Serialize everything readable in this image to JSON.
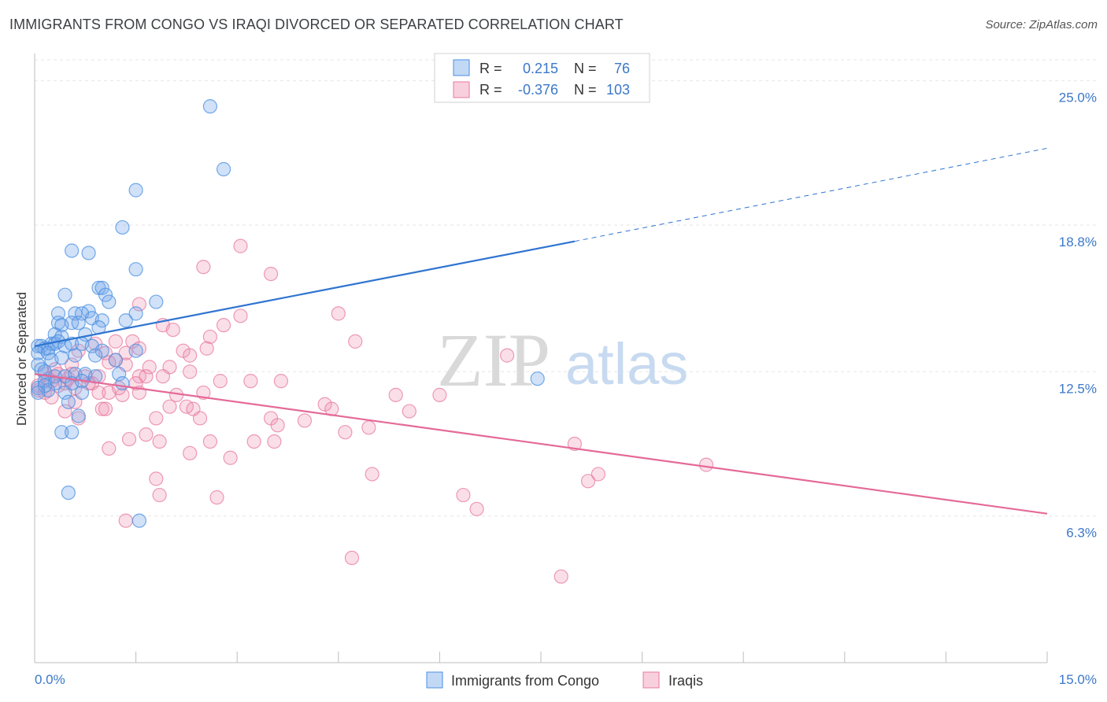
{
  "title": "IMMIGRANTS FROM CONGO VS IRAQI DIVORCED OR SEPARATED CORRELATION CHART",
  "source": "Source: ZipAtlas.com",
  "watermark": {
    "zip": "ZIP",
    "atlas": "atlas"
  },
  "colors": {
    "blue": "#4a8fe0",
    "blue_fill": "rgba(120,170,235,0.35)",
    "blue_line": "#2f74d0",
    "pink": "#e8799f",
    "pink_fill": "rgba(240,150,180,0.30)",
    "pink_line": "#e46a97",
    "grid": "#e6e6e6",
    "tick_text": "#3b78c8"
  },
  "legend_box": {
    "rows": [
      {
        "r_label": "R =",
        "r_value": "0.215",
        "n_label": "N =",
        "n_value": "76"
      },
      {
        "r_label": "R =",
        "r_value": "-0.376",
        "n_label": "N =",
        "n_value": "103"
      }
    ]
  },
  "chart_data": {
    "type": "scatter",
    "xlabel": "",
    "ylabel": "Divorced or Separated",
    "xlim": [
      0,
      15
    ],
    "ylim": [
      0,
      25.9
    ],
    "x_tick_labels": {
      "left": "0.0%",
      "right": "15.0%"
    },
    "y_ticks": [
      {
        "value": 25.0,
        "label": "25.0%"
      },
      {
        "value": 18.8,
        "label": "18.8%"
      },
      {
        "value": 12.5,
        "label": "12.5%"
      },
      {
        "value": 6.3,
        "label": "6.3%"
      }
    ],
    "grid": "horizontal dashed",
    "series": [
      {
        "name": "Immigrants from Congo",
        "color": "blue",
        "trend": {
          "x0": 0.0,
          "y0": 13.6,
          "x1": 8.0,
          "y1": 18.1,
          "dash_to_x": 15.0,
          "dash_to_y": 22.1
        },
        "points": [
          [
            2.6,
            23.9
          ],
          [
            2.8,
            21.2
          ],
          [
            1.5,
            20.3
          ],
          [
            1.3,
            18.7
          ],
          [
            0.55,
            17.7
          ],
          [
            0.8,
            17.6
          ],
          [
            1.5,
            16.9
          ],
          [
            0.95,
            16.1
          ],
          [
            1.0,
            16.1
          ],
          [
            0.45,
            15.8
          ],
          [
            1.05,
            15.8
          ],
          [
            1.1,
            15.5
          ],
          [
            1.8,
            15.5
          ],
          [
            0.35,
            15.0
          ],
          [
            0.6,
            15.0
          ],
          [
            0.8,
            15.1
          ],
          [
            0.7,
            15.0
          ],
          [
            1.5,
            15.0
          ],
          [
            0.35,
            14.6
          ],
          [
            0.55,
            14.6
          ],
          [
            0.65,
            14.6
          ],
          [
            0.4,
            14.5
          ],
          [
            0.85,
            14.8
          ],
          [
            1.0,
            14.7
          ],
          [
            1.35,
            14.7
          ],
          [
            0.3,
            14.1
          ],
          [
            0.75,
            14.1
          ],
          [
            0.4,
            14.0
          ],
          [
            0.95,
            14.4
          ],
          [
            0.05,
            13.6
          ],
          [
            0.1,
            13.6
          ],
          [
            0.15,
            13.5
          ],
          [
            0.2,
            13.5
          ],
          [
            0.25,
            13.7
          ],
          [
            0.3,
            13.7
          ],
          [
            0.35,
            13.8
          ],
          [
            0.45,
            13.6
          ],
          [
            0.55,
            13.7
          ],
          [
            0.7,
            13.7
          ],
          [
            0.85,
            13.6
          ],
          [
            1.0,
            13.4
          ],
          [
            1.5,
            13.4
          ],
          [
            0.05,
            13.3
          ],
          [
            0.2,
            13.3
          ],
          [
            0.25,
            13.0
          ],
          [
            0.4,
            13.1
          ],
          [
            0.6,
            13.2
          ],
          [
            0.9,
            13.2
          ],
          [
            1.2,
            13.0
          ],
          [
            0.05,
            12.8
          ],
          [
            0.1,
            12.6
          ],
          [
            0.15,
            12.5
          ],
          [
            0.3,
            12.3
          ],
          [
            0.45,
            12.3
          ],
          [
            0.6,
            12.4
          ],
          [
            0.75,
            12.4
          ],
          [
            0.9,
            12.3
          ],
          [
            1.25,
            12.4
          ],
          [
            0.15,
            12.1
          ],
          [
            0.3,
            12.0
          ],
          [
            0.55,
            12.0
          ],
          [
            0.7,
            12.1
          ],
          [
            1.3,
            12.0
          ],
          [
            0.05,
            11.8
          ],
          [
            0.2,
            11.7
          ],
          [
            0.45,
            11.6
          ],
          [
            0.7,
            11.6
          ],
          [
            0.5,
            11.2
          ],
          [
            0.65,
            10.6
          ],
          [
            0.4,
            9.9
          ],
          [
            0.55,
            9.9
          ],
          [
            0.5,
            7.3
          ],
          [
            1.55,
            6.1
          ],
          [
            7.45,
            12.2
          ],
          [
            0.15,
            11.9
          ],
          [
            0.05,
            11.6
          ]
        ]
      },
      {
        "name": "Iraqis",
        "color": "pink",
        "trend": {
          "x0": 0.0,
          "y0": 12.4,
          "x1": 15.0,
          "y1": 6.4
        },
        "points": [
          [
            3.05,
            17.9
          ],
          [
            2.5,
            17.0
          ],
          [
            3.5,
            16.7
          ],
          [
            4.5,
            15.0
          ],
          [
            1.55,
            15.4
          ],
          [
            3.05,
            14.9
          ],
          [
            2.8,
            14.5
          ],
          [
            1.9,
            14.5
          ],
          [
            2.05,
            14.3
          ],
          [
            2.6,
            14.0
          ],
          [
            4.75,
            13.8
          ],
          [
            1.2,
            13.8
          ],
          [
            1.45,
            13.8
          ],
          [
            0.9,
            13.7
          ],
          [
            1.55,
            13.5
          ],
          [
            2.2,
            13.4
          ],
          [
            2.55,
            13.5
          ],
          [
            0.65,
            13.4
          ],
          [
            1.35,
            13.3
          ],
          [
            2.3,
            13.2
          ],
          [
            1.05,
            13.3
          ],
          [
            7.0,
            13.2
          ],
          [
            1.2,
            13.0
          ],
          [
            0.55,
            12.8
          ],
          [
            1.1,
            12.9
          ],
          [
            1.35,
            12.8
          ],
          [
            1.7,
            12.7
          ],
          [
            2.0,
            12.7
          ],
          [
            2.3,
            12.5
          ],
          [
            0.15,
            12.4
          ],
          [
            0.35,
            12.4
          ],
          [
            0.55,
            12.4
          ],
          [
            0.75,
            12.3
          ],
          [
            0.95,
            12.3
          ],
          [
            1.55,
            12.3
          ],
          [
            1.65,
            12.3
          ],
          [
            1.9,
            12.3
          ],
          [
            3.2,
            12.1
          ],
          [
            3.65,
            12.1
          ],
          [
            0.25,
            12.1
          ],
          [
            0.45,
            12.0
          ],
          [
            0.85,
            12.0
          ],
          [
            1.5,
            12.0
          ],
          [
            0.05,
            11.9
          ],
          [
            0.35,
            11.9
          ],
          [
            0.6,
            11.8
          ],
          [
            0.15,
            11.6
          ],
          [
            0.95,
            11.6
          ],
          [
            1.1,
            11.6
          ],
          [
            1.55,
            11.6
          ],
          [
            2.1,
            11.5
          ],
          [
            2.5,
            11.6
          ],
          [
            0.25,
            11.4
          ],
          [
            1.3,
            11.5
          ],
          [
            5.35,
            11.5
          ],
          [
            6.0,
            11.5
          ],
          [
            2.0,
            11.0
          ],
          [
            2.25,
            11.0
          ],
          [
            4.3,
            11.1
          ],
          [
            4.4,
            10.9
          ],
          [
            1.0,
            10.9
          ],
          [
            1.05,
            10.9
          ],
          [
            0.45,
            10.8
          ],
          [
            2.35,
            10.9
          ],
          [
            5.55,
            10.8
          ],
          [
            0.65,
            10.5
          ],
          [
            1.8,
            10.5
          ],
          [
            2.45,
            10.5
          ],
          [
            3.5,
            10.5
          ],
          [
            4.0,
            10.4
          ],
          [
            3.6,
            10.2
          ],
          [
            4.95,
            10.1
          ],
          [
            1.65,
            9.8
          ],
          [
            4.6,
            9.9
          ],
          [
            1.4,
            9.6
          ],
          [
            2.6,
            9.5
          ],
          [
            3.25,
            9.5
          ],
          [
            1.85,
            9.5
          ],
          [
            3.55,
            9.5
          ],
          [
            8.0,
            9.4
          ],
          [
            1.1,
            9.2
          ],
          [
            2.3,
            9.0
          ],
          [
            2.9,
            8.8
          ],
          [
            9.95,
            8.5
          ],
          [
            5.0,
            8.1
          ],
          [
            8.35,
            8.1
          ],
          [
            8.2,
            7.8
          ],
          [
            1.8,
            7.9
          ],
          [
            1.85,
            7.2
          ],
          [
            2.7,
            7.1
          ],
          [
            6.35,
            7.2
          ],
          [
            6.55,
            6.6
          ],
          [
            1.35,
            6.1
          ],
          [
            4.7,
            4.5
          ],
          [
            7.8,
            3.7
          ],
          [
            0.05,
            11.7
          ],
          [
            0.2,
            12.2
          ],
          [
            0.5,
            12.2
          ],
          [
            0.8,
            12.0
          ],
          [
            1.25,
            11.8
          ],
          [
            2.75,
            12.1
          ],
          [
            0.6,
            11.2
          ],
          [
            0.3,
            12.6
          ]
        ]
      }
    ]
  },
  "bottom_legend": [
    {
      "label": "Immigrants from Congo",
      "color": "blue"
    },
    {
      "label": "Iraqis",
      "color": "pink"
    }
  ]
}
